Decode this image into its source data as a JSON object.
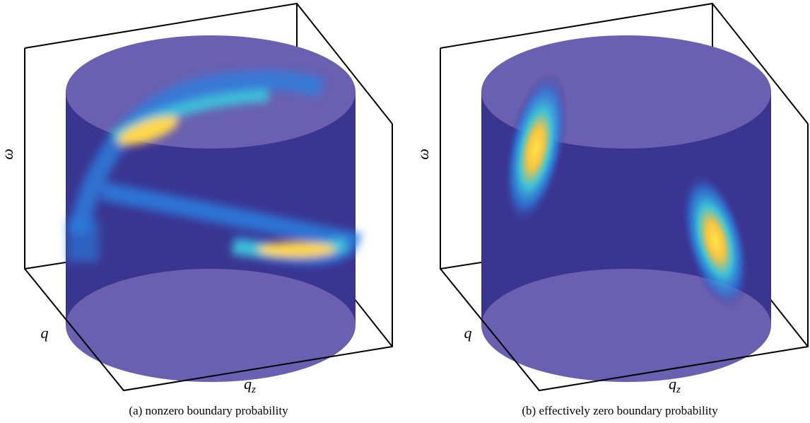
{
  "panels": [
    {
      "caption": "(a) nonzero boundary probability",
      "axes": {
        "omega": "ω",
        "q": "q",
        "qz": {
          "base": "q",
          "sub": "z"
        }
      }
    },
    {
      "caption": "(b) effectively zero boundary probability",
      "axes": {
        "omega": "ω",
        "q": "q",
        "qz": {
          "base": "q",
          "sub": "z"
        }
      }
    }
  ]
}
